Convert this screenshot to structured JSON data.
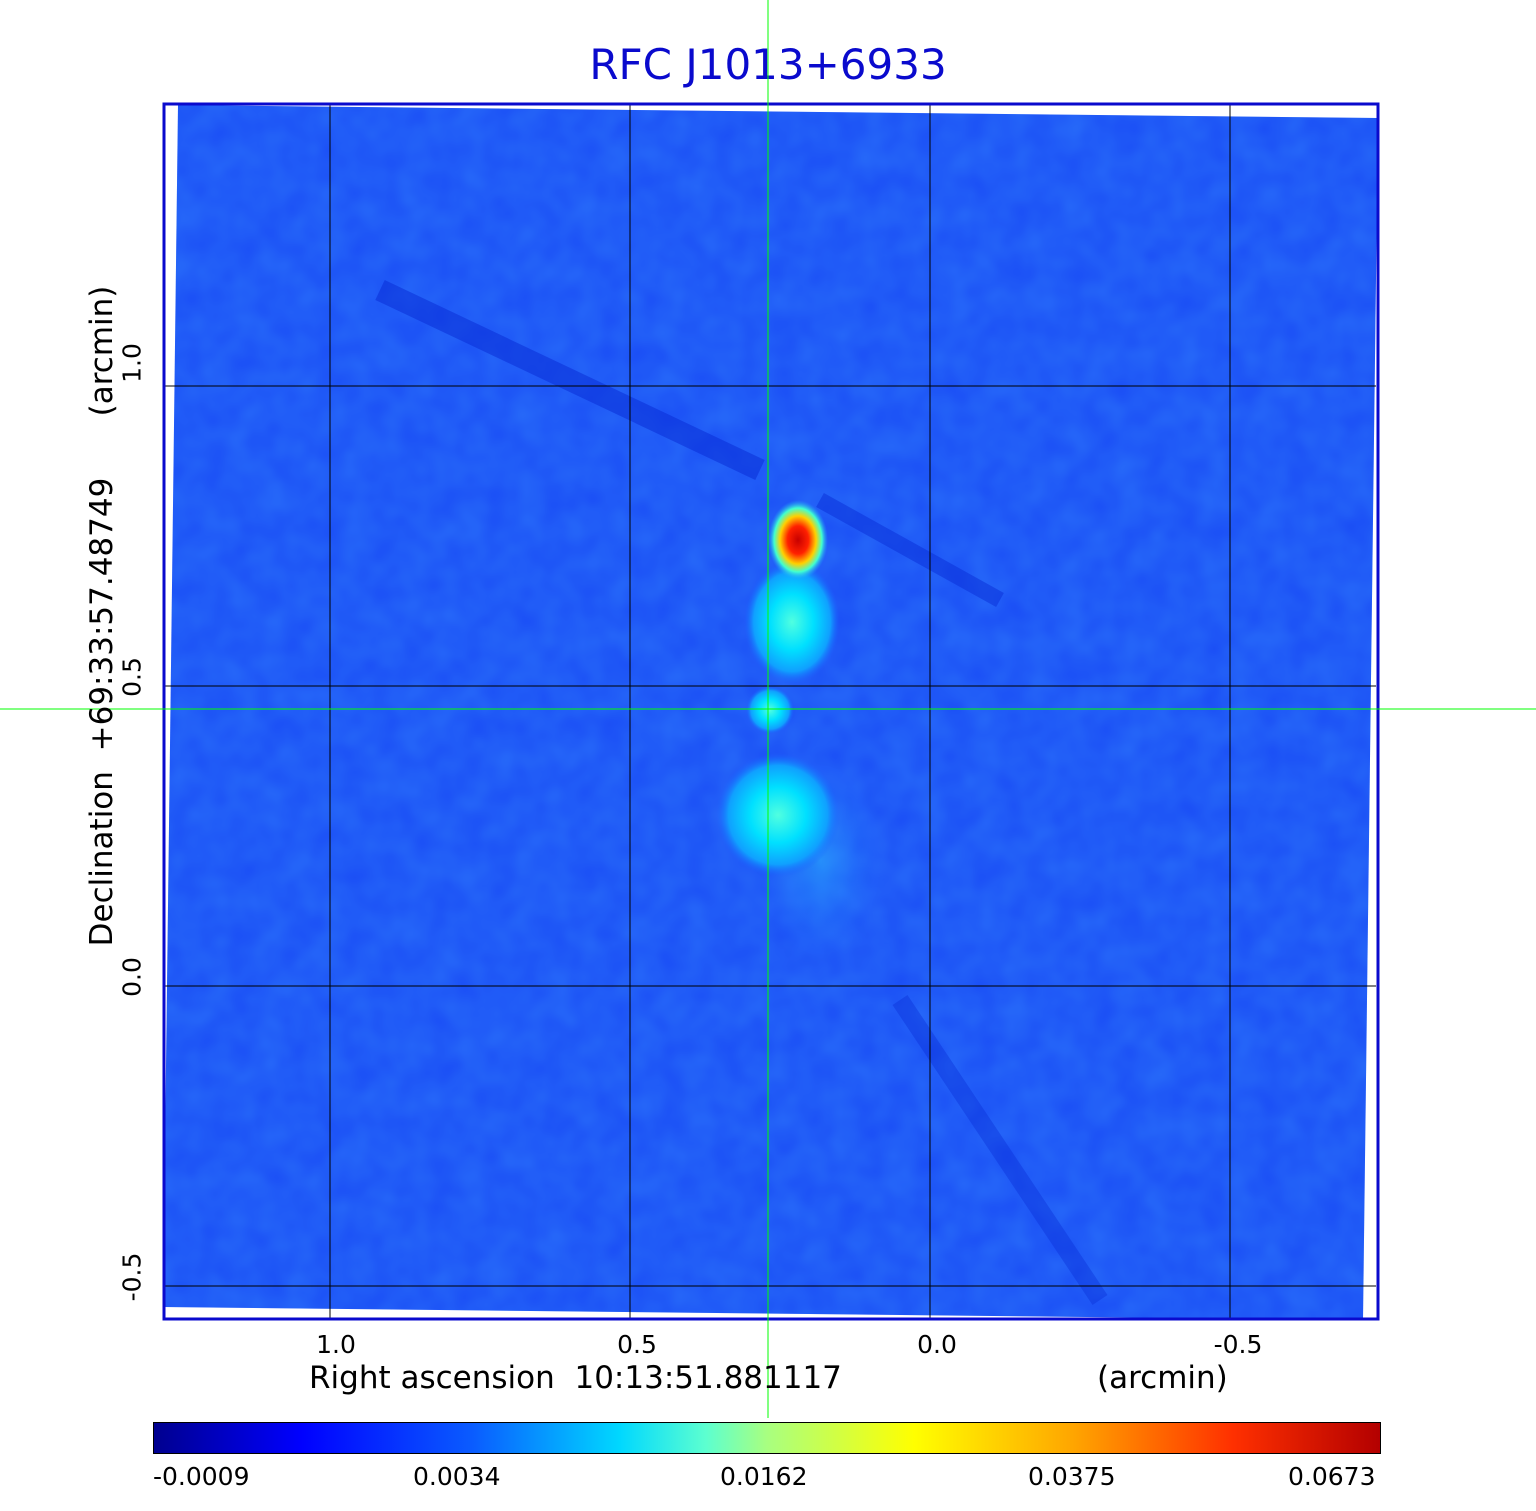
{
  "title": "RFC J1013+6933",
  "x_axis": {
    "label": "Right ascension  10:13:51.881117",
    "unit": "(arcmin)",
    "ticks": [
      "1.0",
      "0.5",
      "0.0",
      "-0.5"
    ]
  },
  "y_axis": {
    "label": "Declination  +69:33:57.48749",
    "unit": "(arcmin)",
    "ticks": [
      "1.0",
      "0.5",
      "0.0",
      "-0.5"
    ]
  },
  "colorbar": {
    "labels": [
      "-0.0009",
      "0.0034",
      "0.0162",
      "0.0375",
      "0.0673"
    ]
  },
  "colors": {
    "frame": "#0a0acd",
    "background_map": "#1a4df5",
    "crosshair": "#00ff00"
  }
}
